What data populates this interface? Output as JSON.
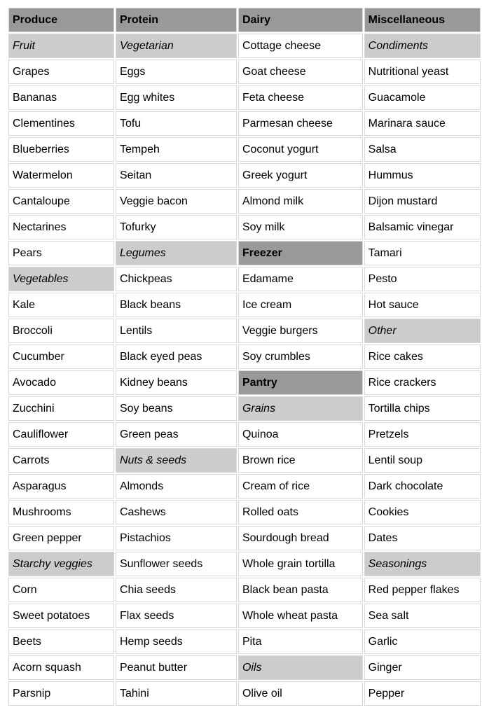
{
  "colors": {
    "header_bg": "#999999",
    "subheader_bg": "#cccccc",
    "border": "#d9d9d9",
    "text": "#000000",
    "page_bg": "#ffffff"
  },
  "table": {
    "column_headers": [
      "Produce",
      "Protein",
      "Dairy",
      "Miscellaneous"
    ],
    "rows": [
      [
        {
          "text": "Produce",
          "type": "header"
        },
        {
          "text": "Protein",
          "type": "header"
        },
        {
          "text": "Dairy",
          "type": "header"
        },
        {
          "text": "Miscellaneous",
          "type": "header"
        }
      ],
      [
        {
          "text": "Fruit",
          "type": "subheader"
        },
        {
          "text": "Vegetarian",
          "type": "subheader"
        },
        {
          "text": "Cottage cheese",
          "type": "item"
        },
        {
          "text": "Condiments",
          "type": "subheader"
        }
      ],
      [
        {
          "text": "Grapes",
          "type": "item"
        },
        {
          "text": "Eggs",
          "type": "item"
        },
        {
          "text": "Goat cheese",
          "type": "item"
        },
        {
          "text": "Nutritional yeast",
          "type": "item"
        }
      ],
      [
        {
          "text": "Bananas",
          "type": "item"
        },
        {
          "text": "Egg whites",
          "type": "item"
        },
        {
          "text": "Feta cheese",
          "type": "item"
        },
        {
          "text": "Guacamole",
          "type": "item"
        }
      ],
      [
        {
          "text": "Clementines",
          "type": "item"
        },
        {
          "text": "Tofu",
          "type": "item"
        },
        {
          "text": "Parmesan cheese",
          "type": "item"
        },
        {
          "text": "Marinara sauce",
          "type": "item"
        }
      ],
      [
        {
          "text": "Blueberries",
          "type": "item"
        },
        {
          "text": "Tempeh",
          "type": "item"
        },
        {
          "text": "Coconut yogurt",
          "type": "item"
        },
        {
          "text": "Salsa",
          "type": "item"
        }
      ],
      [
        {
          "text": "Watermelon",
          "type": "item"
        },
        {
          "text": "Seitan",
          "type": "item"
        },
        {
          "text": "Greek yogurt",
          "type": "item"
        },
        {
          "text": "Hummus",
          "type": "item"
        }
      ],
      [
        {
          "text": "Cantaloupe",
          "type": "item"
        },
        {
          "text": "Veggie bacon",
          "type": "item"
        },
        {
          "text": "Almond milk",
          "type": "item"
        },
        {
          "text": "Dijon mustard",
          "type": "item"
        }
      ],
      [
        {
          "text": "Nectarines",
          "type": "item"
        },
        {
          "text": "Tofurky",
          "type": "item"
        },
        {
          "text": "Soy milk",
          "type": "item"
        },
        {
          "text": "Balsamic vinegar",
          "type": "item"
        }
      ],
      [
        {
          "text": "Pears",
          "type": "item"
        },
        {
          "text": "Legumes",
          "type": "subheader"
        },
        {
          "text": "Freezer",
          "type": "header"
        },
        {
          "text": "Tamari",
          "type": "item"
        }
      ],
      [
        {
          "text": "Vegetables",
          "type": "subheader"
        },
        {
          "text": "Chickpeas",
          "type": "item"
        },
        {
          "text": "Edamame",
          "type": "item"
        },
        {
          "text": "Pesto",
          "type": "item"
        }
      ],
      [
        {
          "text": "Kale",
          "type": "item"
        },
        {
          "text": "Black beans",
          "type": "item"
        },
        {
          "text": "Ice cream",
          "type": "item"
        },
        {
          "text": "Hot sauce",
          "type": "item"
        }
      ],
      [
        {
          "text": "Broccoli",
          "type": "item"
        },
        {
          "text": "Lentils",
          "type": "item"
        },
        {
          "text": "Veggie burgers",
          "type": "item"
        },
        {
          "text": "Other",
          "type": "subheader"
        }
      ],
      [
        {
          "text": "Cucumber",
          "type": "item"
        },
        {
          "text": "Black eyed peas",
          "type": "item"
        },
        {
          "text": "Soy crumbles",
          "type": "item"
        },
        {
          "text": "Rice cakes",
          "type": "item"
        }
      ],
      [
        {
          "text": "Avocado",
          "type": "item"
        },
        {
          "text": "Kidney beans",
          "type": "item"
        },
        {
          "text": "Pantry",
          "type": "header"
        },
        {
          "text": "Rice crackers",
          "type": "item"
        }
      ],
      [
        {
          "text": "Zucchini",
          "type": "item"
        },
        {
          "text": "Soy beans",
          "type": "item"
        },
        {
          "text": "Grains",
          "type": "subheader"
        },
        {
          "text": "Tortilla chips",
          "type": "item"
        }
      ],
      [
        {
          "text": "Cauliflower",
          "type": "item"
        },
        {
          "text": "Green peas",
          "type": "item"
        },
        {
          "text": "Quinoa",
          "type": "item"
        },
        {
          "text": "Pretzels",
          "type": "item"
        }
      ],
      [
        {
          "text": "Carrots",
          "type": "item"
        },
        {
          "text": "Nuts & seeds",
          "type": "subheader"
        },
        {
          "text": "Brown rice",
          "type": "item"
        },
        {
          "text": "Lentil soup",
          "type": "item"
        }
      ],
      [
        {
          "text": "Asparagus",
          "type": "item"
        },
        {
          "text": "Almonds",
          "type": "item"
        },
        {
          "text": "Cream of rice",
          "type": "item"
        },
        {
          "text": "Dark chocolate",
          "type": "item"
        }
      ],
      [
        {
          "text": "Mushrooms",
          "type": "item"
        },
        {
          "text": "Cashews",
          "type": "item"
        },
        {
          "text": "Rolled oats",
          "type": "item"
        },
        {
          "text": "Cookies",
          "type": "item"
        }
      ],
      [
        {
          "text": "Green pepper",
          "type": "item"
        },
        {
          "text": "Pistachios",
          "type": "item"
        },
        {
          "text": "Sourdough bread",
          "type": "item"
        },
        {
          "text": "Dates",
          "type": "item"
        }
      ],
      [
        {
          "text": "Starchy veggies",
          "type": "subheader"
        },
        {
          "text": "Sunflower seeds",
          "type": "item"
        },
        {
          "text": "Whole grain tortilla",
          "type": "item"
        },
        {
          "text": "Seasonings",
          "type": "subheader"
        }
      ],
      [
        {
          "text": "Corn",
          "type": "item"
        },
        {
          "text": "Chia seeds",
          "type": "item"
        },
        {
          "text": "Black bean pasta",
          "type": "item"
        },
        {
          "text": "Red pepper flakes",
          "type": "item"
        }
      ],
      [
        {
          "text": "Sweet potatoes",
          "type": "item"
        },
        {
          "text": "Flax seeds",
          "type": "item"
        },
        {
          "text": "Whole wheat pasta",
          "type": "item"
        },
        {
          "text": "Sea salt",
          "type": "item"
        }
      ],
      [
        {
          "text": "Beets",
          "type": "item"
        },
        {
          "text": "Hemp seeds",
          "type": "item"
        },
        {
          "text": "Pita",
          "type": "item"
        },
        {
          "text": "Garlic",
          "type": "item"
        }
      ],
      [
        {
          "text": "Acorn squash",
          "type": "item"
        },
        {
          "text": "Peanut butter",
          "type": "item"
        },
        {
          "text": "Oils",
          "type": "subheader"
        },
        {
          "text": "Ginger",
          "type": "item"
        }
      ],
      [
        {
          "text": "Parsnip",
          "type": "item"
        },
        {
          "text": "Tahini",
          "type": "item"
        },
        {
          "text": "Olive oil",
          "type": "item"
        },
        {
          "text": "Pepper",
          "type": "item"
        }
      ]
    ]
  }
}
